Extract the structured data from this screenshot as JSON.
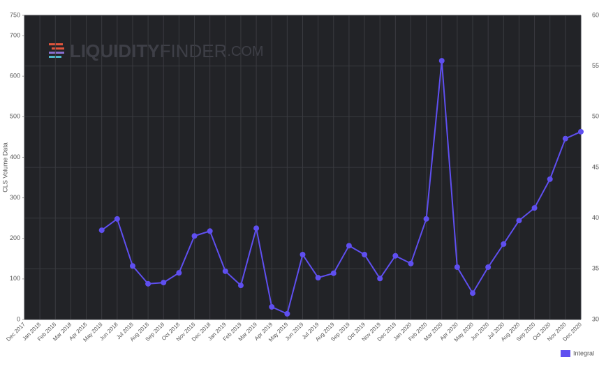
{
  "chart_data": {
    "type": "line",
    "y_label": "CLS Volume Data",
    "watermark": [
      "LIQUIDITY",
      "FINDER",
      ".COM"
    ],
    "categories": [
      "Dec 2017",
      "Jan 2018",
      "Feb 2018",
      "Mar 2018",
      "Apr 2018",
      "May 2018",
      "Jun 2018",
      "Jul 2018",
      "Aug 2018",
      "Sep 2018",
      "Oct 2018",
      "Nov 2018",
      "Dec 2018",
      "Jan 2019",
      "Feb 2019",
      "Mar 2019",
      "Apr 2019",
      "May 2019",
      "Jun 2019",
      "Jul 2019",
      "Aug 2019",
      "Sep 2019",
      "Oct 2019",
      "Nov 2019",
      "Dec 2019",
      "Jan 2020",
      "Feb 2020",
      "Mar 2020",
      "Apr 2020",
      "May 2020",
      "Jun 2020",
      "Jul 2020",
      "Aug 2020",
      "Sep 2020",
      "Oct 2020",
      "Nov 2020",
      "Dec 2020"
    ],
    "series": [
      {
        "name": "Integral",
        "color": "#5f4ff0",
        "values": [
          null,
          null,
          null,
          null,
          null,
          220,
          248,
          132,
          88,
          91,
          115,
          206,
          218,
          119,
          84,
          225,
          31,
          14,
          160,
          103,
          114,
          182,
          160,
          101,
          157,
          138,
          248,
          638,
          129,
          65,
          129,
          186,
          244,
          275,
          346,
          446,
          463
        ]
      }
    ],
    "ylim": [
      0,
      750
    ],
    "yticks": [
      0,
      100,
      200,
      300,
      400,
      500,
      600,
      700,
      750
    ],
    "y2lim": [
      30,
      60
    ],
    "y2ticks": [
      30,
      35,
      40,
      45,
      50,
      55,
      60
    ],
    "grid": true,
    "legend": "bottom-right"
  }
}
